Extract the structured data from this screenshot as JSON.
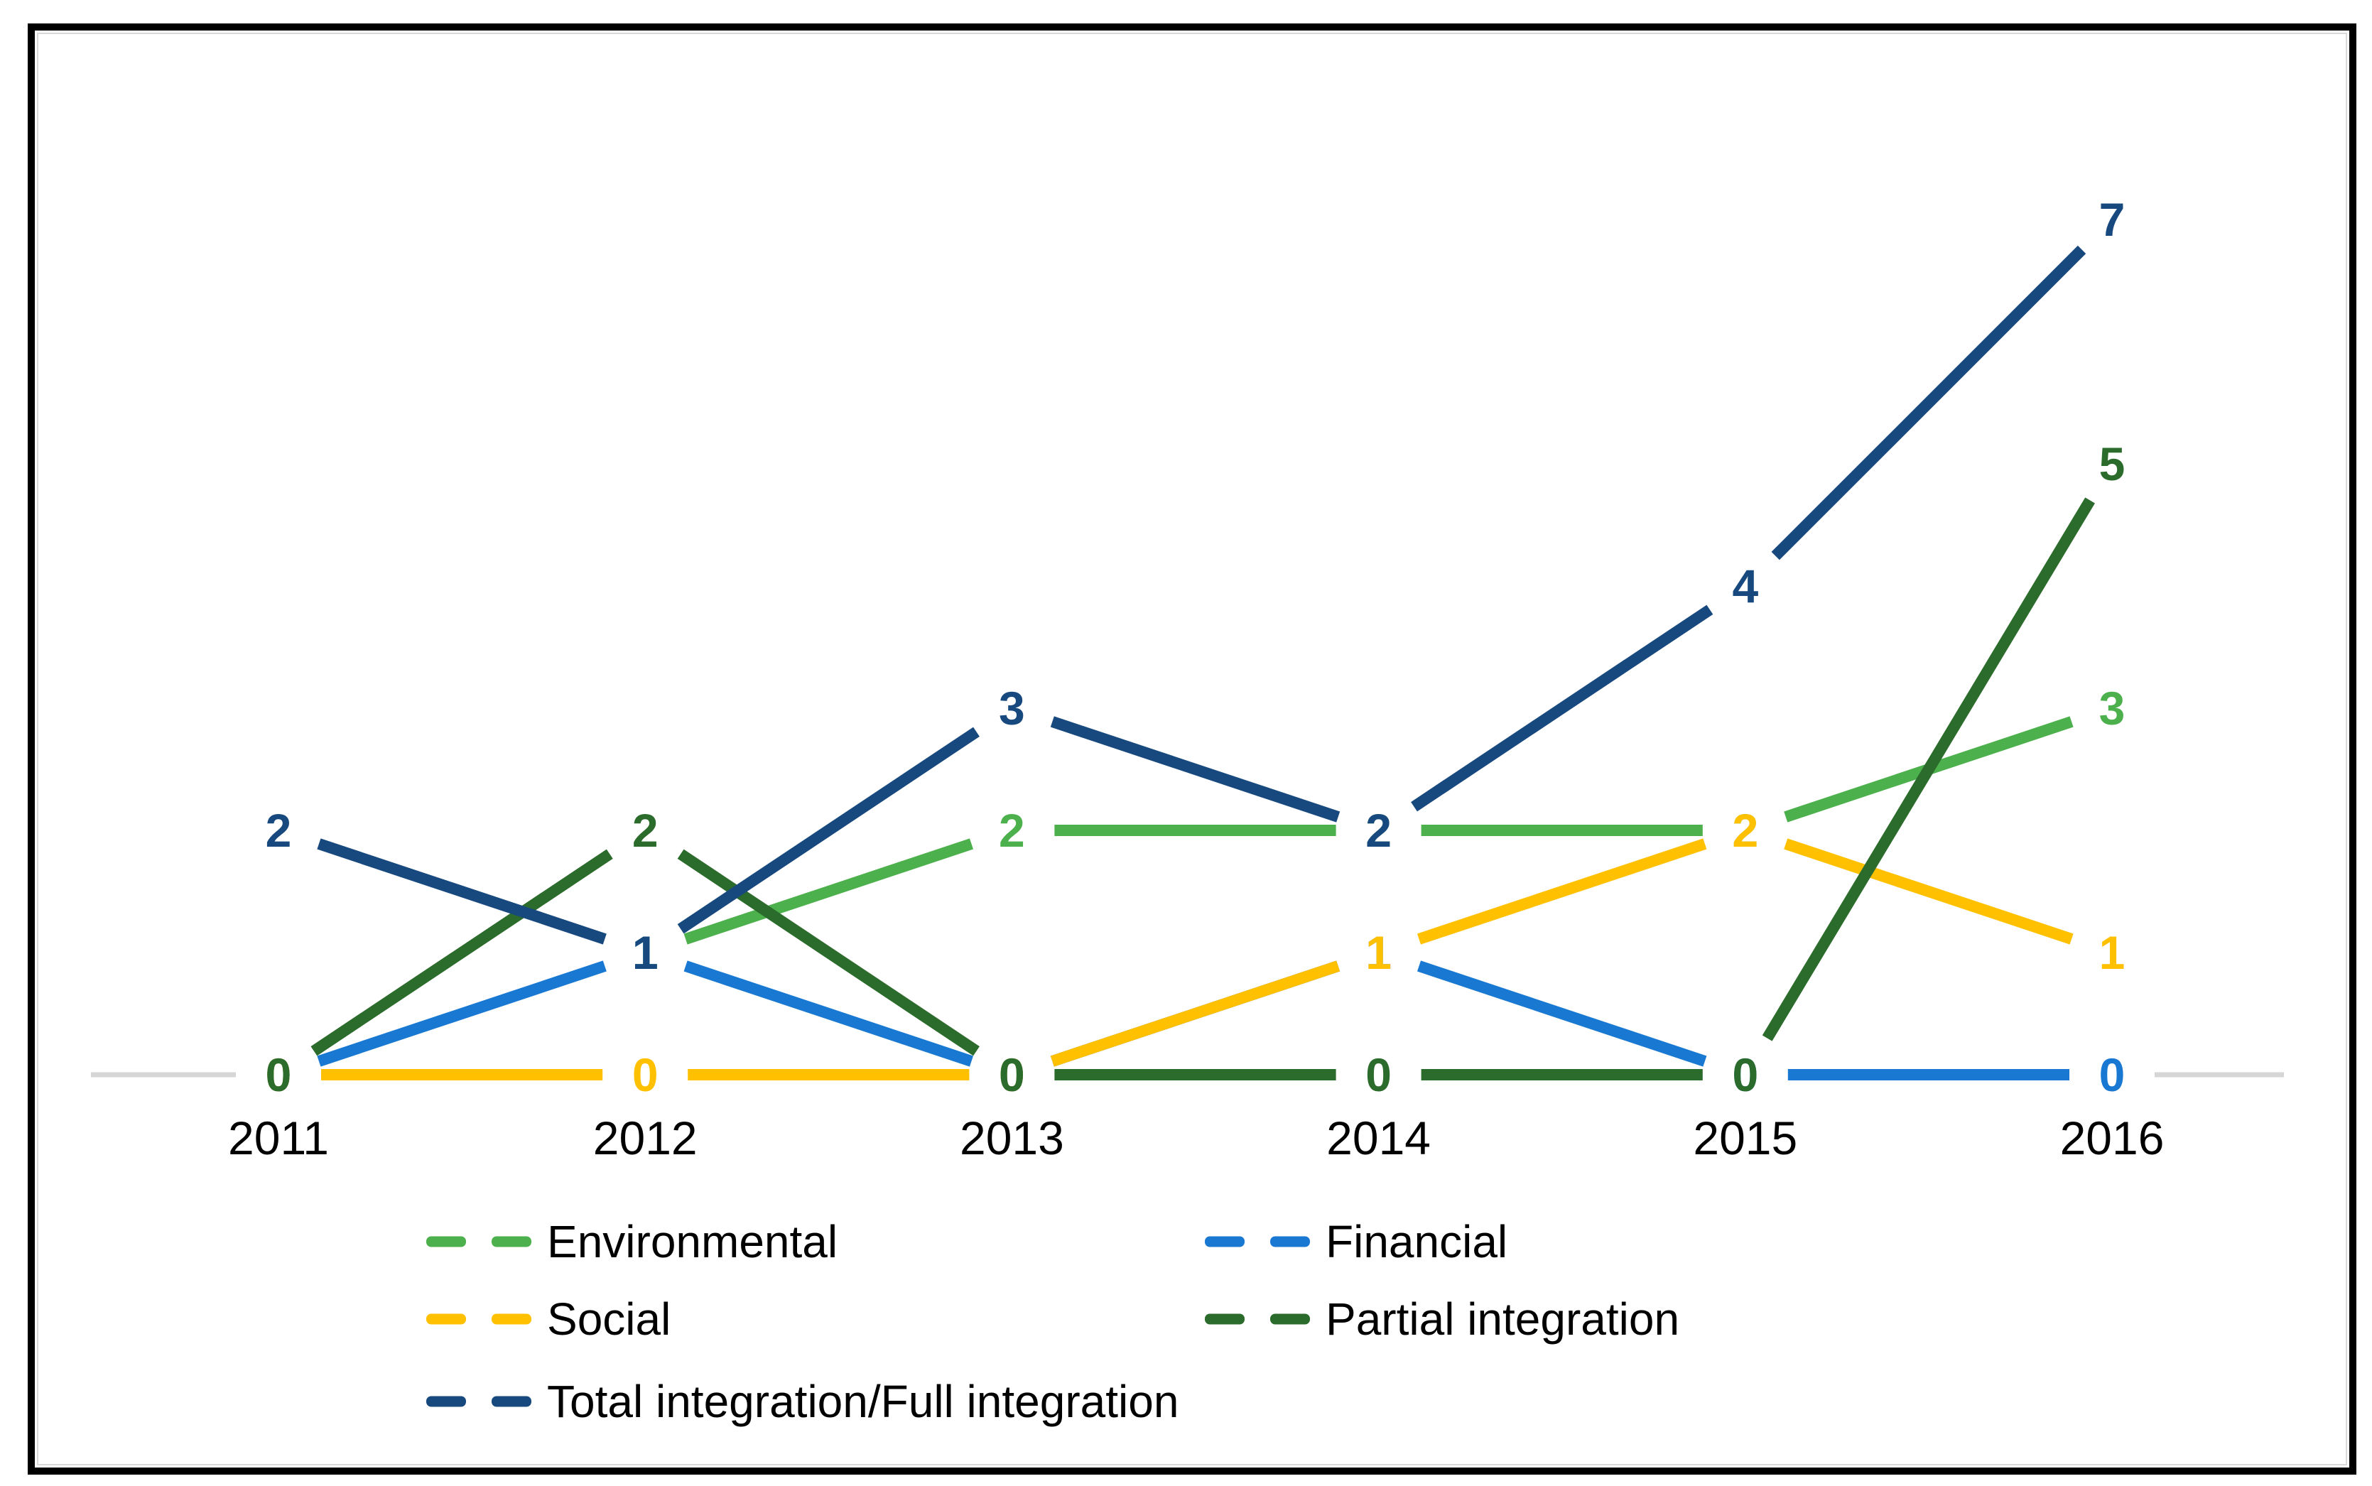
{
  "chart_data": {
    "type": "line",
    "categories": [
      "2011",
      "2012",
      "2013",
      "2014",
      "2015",
      "2016"
    ],
    "series": [
      {
        "name": "Environmental",
        "color": "#4CB04C",
        "values": [
          null,
          1,
          2,
          2,
          2,
          3
        ]
      },
      {
        "name": "Financial",
        "color": "#1878D2",
        "values": [
          0,
          1,
          0,
          1,
          0,
          0
        ]
      },
      {
        "name": "Social",
        "color": "#FFC000",
        "values": [
          0,
          0,
          0,
          1,
          2,
          1
        ]
      },
      {
        "name": "Partial integration",
        "color": "#2B6B2B",
        "values": [
          0,
          2,
          0,
          0,
          0,
          5
        ]
      },
      {
        "name": "Total integration/Full integration",
        "color": "#17497E",
        "values": [
          2,
          1,
          3,
          2,
          4,
          7
        ]
      }
    ],
    "title": "",
    "xlabel": "",
    "ylabel": "",
    "ylim": [
      0,
      7.5
    ],
    "grid": false,
    "data_labels": true,
    "axis_line_color": "#D6D6D6",
    "tick_label_color": "#000000",
    "legend_position": "bottom",
    "legend_columns": [
      [
        "Environmental",
        "Social",
        "Total integration/Full integration"
      ],
      [
        "Financial",
        "Partial integration"
      ]
    ]
  },
  "frame": {
    "border_color": "#000000",
    "inner_line_color": "#D9D9D9",
    "background": "#FFFFFF"
  }
}
